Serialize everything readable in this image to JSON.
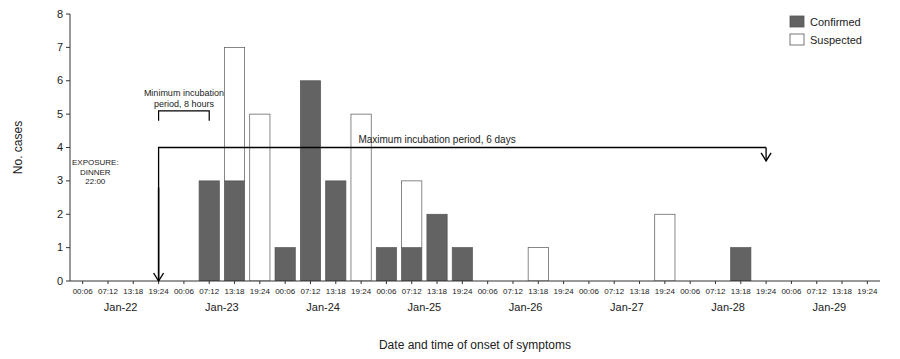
{
  "chart_data": {
    "type": "bar",
    "stacked": true,
    "categories": [
      "00:06",
      "07:12",
      "13:18",
      "19:24",
      "00:06",
      "07:12",
      "13:18",
      "19:24",
      "00:06",
      "07:12",
      "13:18",
      "19:24",
      "00:06",
      "07:12",
      "13:18",
      "19:24",
      "00:06",
      "07:12",
      "13:18",
      "19:24",
      "00:06",
      "07:12",
      "13:18",
      "19:24",
      "00:06",
      "07:12",
      "13:18",
      "19:24",
      "00:06",
      "07:12",
      "13:18",
      "19:24"
    ],
    "category_groups": [
      "Jan-22",
      "Jan-23",
      "Jan-24",
      "Jan-25",
      "Jan-26",
      "Jan-27",
      "Jan-28",
      "Jan-29"
    ],
    "series": [
      {
        "name": "Confirmed",
        "color": "#636363",
        "values": [
          0,
          0,
          0,
          0,
          0,
          3,
          3,
          0,
          1,
          6,
          3,
          0,
          1,
          1,
          2,
          1,
          0,
          0,
          0,
          0,
          0,
          0,
          0,
          0,
          0,
          0,
          1,
          0,
          0,
          0,
          0,
          0
        ]
      },
      {
        "name": "Suspected",
        "color": "#ffffff",
        "values": [
          0,
          0,
          0,
          0,
          0,
          0,
          4,
          5,
          0,
          0,
          0,
          5,
          0,
          2,
          0,
          0,
          0,
          0,
          1,
          0,
          0,
          0,
          0,
          2,
          0,
          0,
          0,
          0,
          0,
          0,
          0,
          0
        ]
      }
    ],
    "x_label": "Date and time of onset of symptoms",
    "y_label": "No. cases",
    "ylim": [
      0,
      8
    ],
    "yticks": [
      0,
      1,
      2,
      3,
      4,
      5,
      6,
      7,
      8
    ],
    "grid": false,
    "legend": "upper right",
    "annotations": [
      {
        "shape": "arrow",
        "text": "EXPOSURE:\nDINNER\n22:00",
        "x": 0.5,
        "y": 2.85,
        "arrow_x": 3,
        "arrow_from": 2.8,
        "arrow_to": 0
      },
      {
        "shape": "bracket",
        "text": "Minimum incubation\nperiod, 8 hours",
        "x_start": 3,
        "x_end": 5,
        "y": 5.1
      },
      {
        "shape": "line",
        "text": "Maximum incubation period, 6 days",
        "x_start": 3,
        "x_end": 27,
        "y": 4,
        "arrow_to": 3.6,
        "label_x": 14
      }
    ]
  }
}
